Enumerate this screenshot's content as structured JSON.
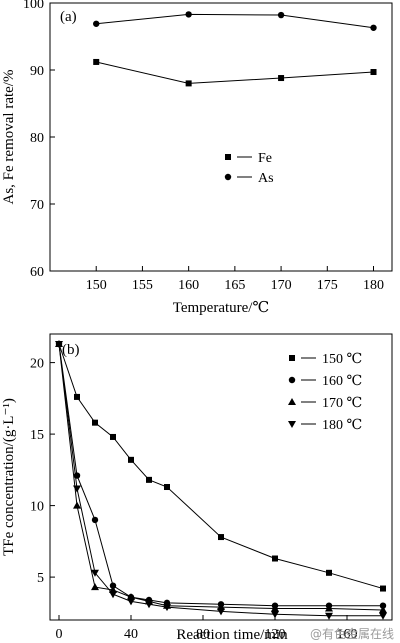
{
  "watermark": "@有色金属在线",
  "chart_data": [
    {
      "type": "line",
      "panel_label": "(a)",
      "xlabel": "Temperature/℃",
      "ylabel": "As, Fe removal rate/%",
      "xlim": [
        145,
        182
      ],
      "ylim": [
        60,
        100
      ],
      "xticks": [
        150,
        155,
        160,
        165,
        170,
        175,
        180
      ],
      "yticks": [
        60,
        70,
        80,
        90,
        100
      ],
      "x": [
        150,
        160,
        170,
        180
      ],
      "series": [
        {
          "name": "Fe",
          "marker": "square",
          "values": [
            91.2,
            88.0,
            88.8,
            89.7
          ]
        },
        {
          "name": "As",
          "marker": "circle",
          "values": [
            96.9,
            98.3,
            98.2,
            96.3
          ]
        }
      ],
      "legend_position": "center"
    },
    {
      "type": "line",
      "panel_label": "(b)",
      "xlabel": "Reaction time/min",
      "ylabel": "TFe concentration/(g·L⁻¹)",
      "xlim": [
        -5,
        185
      ],
      "ylim": [
        2,
        22
      ],
      "xticks": [
        0,
        40,
        80,
        120,
        160
      ],
      "yticks": [
        5,
        10,
        15,
        20
      ],
      "legend_position": "top-right",
      "series": [
        {
          "name": "150 ℃",
          "marker": "square",
          "x": [
            0,
            10,
            20,
            30,
            40,
            50,
            60,
            90,
            120,
            150,
            180
          ],
          "values": [
            21.3,
            17.6,
            15.8,
            14.8,
            13.2,
            11.8,
            11.3,
            7.8,
            6.3,
            5.3,
            4.2
          ]
        },
        {
          "name": "160 ℃",
          "marker": "circle",
          "x": [
            0,
            10,
            20,
            30,
            40,
            50,
            60,
            90,
            120,
            150,
            180
          ],
          "values": [
            21.3,
            12.1,
            9.0,
            4.4,
            3.6,
            3.4,
            3.2,
            3.1,
            3.0,
            3.0,
            3.0
          ]
        },
        {
          "name": "170 ℃",
          "marker": "triangle-up",
          "x": [
            0,
            10,
            20,
            30,
            40,
            50,
            60,
            90,
            120,
            150,
            180
          ],
          "values": [
            21.3,
            10.0,
            4.3,
            4.1,
            3.6,
            3.3,
            3.0,
            2.9,
            2.8,
            2.8,
            2.7
          ]
        },
        {
          "name": "180 ℃",
          "marker": "triangle-down",
          "x": [
            0,
            10,
            20,
            30,
            40,
            50,
            60,
            90,
            120,
            150,
            180
          ],
          "values": [
            21.3,
            11.2,
            5.3,
            3.8,
            3.3,
            3.1,
            2.9,
            2.6,
            2.4,
            2.3,
            2.3
          ]
        }
      ]
    }
  ]
}
